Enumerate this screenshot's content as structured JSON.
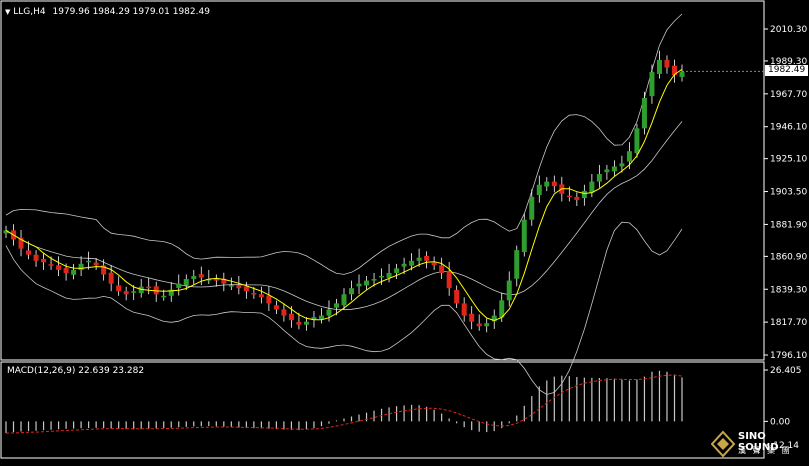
{
  "chart_data": [
    {
      "type": "candlestick",
      "symbol_label": "LLG,H4",
      "ohlc_label": "1979.96 1984.29 1979.01 1982.49",
      "y_ticks": [
        "2010.30",
        "1989.30",
        "1967.70",
        "1946.10",
        "1925.10",
        "1903.50",
        "1881.90",
        "1860.90",
        "1839.30",
        "1817.70",
        "1796.10"
      ],
      "ylim": [
        1796.1,
        2010.3
      ],
      "current_price_label": "1982.49",
      "current_price": 1982.49,
      "indicators": [
        "Bollinger Bands",
        "Moving Average"
      ],
      "colors": {
        "up": "#2f9e2f",
        "down": "#e0261b",
        "bands": "#c8c8c8",
        "ma": "#ffff00"
      },
      "closes": [
        1878,
        1872,
        1866,
        1862,
        1858,
        1857,
        1855,
        1852,
        1850,
        1852,
        1856,
        1858,
        1855,
        1849,
        1843,
        1838,
        1836,
        1838,
        1841,
        1840,
        1836,
        1835,
        1839,
        1843,
        1846,
        1848,
        1847,
        1846,
        1845,
        1843,
        1842,
        1840,
        1838,
        1836,
        1834,
        1830,
        1826,
        1822,
        1819,
        1816,
        1818,
        1821,
        1822,
        1826,
        1830,
        1836,
        1840,
        1843,
        1845,
        1846,
        1848,
        1850,
        1853,
        1856,
        1858,
        1860,
        1858,
        1855,
        1850,
        1840,
        1830,
        1822,
        1818,
        1815,
        1817,
        1822,
        1832,
        1845,
        1865,
        1885,
        1900,
        1908,
        1910,
        1907,
        1902,
        1900,
        1898,
        1904,
        1910,
        1915,
        1918,
        1920,
        1922,
        1930,
        1945,
        1965,
        1982,
        1990,
        1985,
        1980,
        1982
      ]
    },
    {
      "type": "macd",
      "label": "MACD(12,26,9) 22.639 23.282",
      "y_ticks": [
        "26.405",
        "0.00",
        "-12.14"
      ],
      "ylim": [
        -12.14,
        26.405
      ],
      "colors": {
        "histogram": "#c8c8c8",
        "signal": "#e0261b"
      },
      "histogram": [
        -6,
        -5.5,
        -5.2,
        -5,
        -4.8,
        -4.5,
        -4.3,
        -4,
        -3.8,
        -3.7,
        -3.5,
        -3.4,
        -3.3,
        -3.4,
        -3.6,
        -3.8,
        -4,
        -4.1,
        -4,
        -3.8,
        -3.6,
        -3.4,
        -3.2,
        -3,
        -2.8,
        -2.6,
        -2.5,
        -2.4,
        -2.5,
        -2.7,
        -3,
        -3.2,
        -3.4,
        -3.5,
        -3.6,
        -3.8,
        -4,
        -4.2,
        -4.4,
        -4.5,
        -4.2,
        -3.5,
        -2.5,
        -1.2,
        0.5,
        1.5,
        2.5,
        3.5,
        4.5,
        5.5,
        6.5,
        7.2,
        7.8,
        8.2,
        8.5,
        8.3,
        7.5,
        6,
        4,
        1.5,
        -1,
        -3,
        -4.5,
        -5.3,
        -5.5,
        -5,
        -3.5,
        -1,
        3,
        8,
        13,
        18,
        21,
        23,
        23.5,
        23.2,
        22.8,
        22.5,
        22.4,
        22.3,
        22.2,
        22,
        21.5,
        21,
        21.5,
        23,
        25.5,
        26,
        25.5,
        24,
        22.6
      ],
      "signal": [
        -6,
        -5.9,
        -5.8,
        -5.6,
        -5.5,
        -5.3,
        -5.1,
        -4.9,
        -4.7,
        -4.5,
        -4.3,
        -4.1,
        -3.9,
        -3.8,
        -3.7,
        -3.7,
        -3.7,
        -3.8,
        -3.8,
        -3.8,
        -3.8,
        -3.7,
        -3.6,
        -3.5,
        -3.4,
        -3.2,
        -3.1,
        -3,
        -2.9,
        -2.9,
        -2.9,
        -3,
        -3.1,
        -3.2,
        -3.3,
        -3.4,
        -3.5,
        -3.7,
        -3.9,
        -4,
        -4,
        -3.9,
        -3.6,
        -3.1,
        -2.4,
        -1.6,
        -0.8,
        0.1,
        1,
        2,
        3,
        3.9,
        4.7,
        5.4,
        6,
        6.5,
        6.7,
        6.7,
        6.3,
        5.5,
        4.3,
        2.8,
        1.3,
        -0.1,
        -1.3,
        -2.1,
        -2.4,
        -2.1,
        -1,
        1,
        3.5,
        6.5,
        9.5,
        12.3,
        14.8,
        16.8,
        18.4,
        19.6,
        20.4,
        21,
        21.4,
        21.6,
        21.6,
        21.5,
        21.5,
        21.8,
        22.5,
        23.2,
        23.7,
        23.8,
        23.3
      ]
    }
  ],
  "logo": {
    "text": "SINO SOUND",
    "sub": "漢 聲 集 團"
  }
}
